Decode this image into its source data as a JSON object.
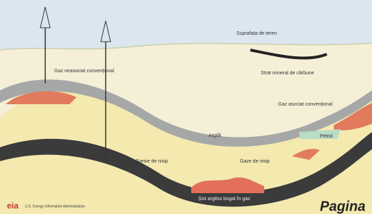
{
  "labels": {
    "land_surface": "Suprafața de teren",
    "coalbed": "Strat mineral de cărbune",
    "non_associated": "Gaz neasociat convențional",
    "associated": "Gaz asociat convențional",
    "seal": "Argilă",
    "oil": "Petrol",
    "sandstone": "Gresie de nisip",
    "tight_sand": "Gaze de nisip",
    "shale": "Șist argilos bogat în gaz",
    "logo": "eia",
    "agency": "U.S. Energy Information Administration",
    "page": "Pagina"
  }
}
